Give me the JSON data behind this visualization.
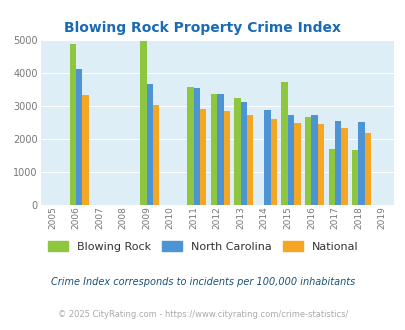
{
  "title": "Blowing Rock Property Crime Index",
  "blowing_rock_data": {
    "2006": 4880,
    "2009": 4950,
    "2011": 3550,
    "2012": 3340,
    "2013": 3220,
    "2015": 3720,
    "2016": 2650,
    "2017": 1700,
    "2018": 1640
  },
  "north_carolina_data": {
    "2006": 4100,
    "2009": 3640,
    "2011": 3520,
    "2012": 3360,
    "2013": 3110,
    "2014": 2880,
    "2015": 2730,
    "2016": 2710,
    "2017": 2530,
    "2018": 2510
  },
  "national_data": {
    "2006": 3320,
    "2009": 3020,
    "2011": 2900,
    "2012": 2840,
    "2013": 2730,
    "2014": 2580,
    "2015": 2470,
    "2016": 2430,
    "2017": 2320,
    "2018": 2170
  },
  "color_blowing_rock": "#8dc63f",
  "color_nc": "#4d94d4",
  "color_national": "#f5a623",
  "bg_color": "#ddeef6",
  "ylim": [
    0,
    5000
  ],
  "yticks": [
    0,
    1000,
    2000,
    3000,
    4000,
    5000
  ],
  "xlabel_years": [
    "2005",
    "2006",
    "2007",
    "2008",
    "2009",
    "2010",
    "2011",
    "2012",
    "2013",
    "2014",
    "2015",
    "2016",
    "2017",
    "2018",
    "2019"
  ],
  "footnote1": "Crime Index corresponds to incidents per 100,000 inhabitants",
  "footnote2": "© 2025 CityRating.com - https://www.cityrating.com/crime-statistics/",
  "legend_labels": [
    "Blowing Rock",
    "North Carolina",
    "National"
  ]
}
